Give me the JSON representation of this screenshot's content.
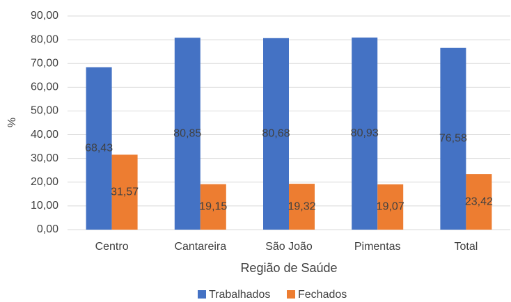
{
  "chart_data": {
    "type": "bar",
    "x_label": "Região de Saúde",
    "y_label": "%",
    "categories": [
      "Centro",
      "Cantareira",
      "São João",
      "Pimentas",
      "Total"
    ],
    "series": [
      {
        "name": "Trabalhados",
        "color": "#4472c4",
        "values": [
          68.43,
          80.85,
          80.68,
          80.93,
          76.58
        ],
        "value_labels": [
          "68,43",
          "80,85",
          "80,68",
          "80,93",
          "76,58"
        ]
      },
      {
        "name": "Fechados",
        "color": "#ed7d31",
        "values": [
          31.57,
          19.15,
          19.32,
          19.07,
          23.42
        ],
        "value_labels": [
          "31,57",
          "19,15",
          "19,32",
          "19,07",
          "23,42"
        ]
      }
    ],
    "ylim": [
      0,
      90
    ],
    "yticks": [
      {
        "value": 0,
        "label": "0,00"
      },
      {
        "value": 10,
        "label": "10,00"
      },
      {
        "value": 20,
        "label": "20,00"
      },
      {
        "value": 30,
        "label": "30,00"
      },
      {
        "value": 40,
        "label": "40,00"
      },
      {
        "value": 50,
        "label": "50,00"
      },
      {
        "value": 60,
        "label": "60,00"
      },
      {
        "value": 70,
        "label": "70,00"
      },
      {
        "value": 80,
        "label": "80,00"
      },
      {
        "value": 90,
        "label": "90,00"
      }
    ],
    "grid": true,
    "legend": "bottom"
  }
}
